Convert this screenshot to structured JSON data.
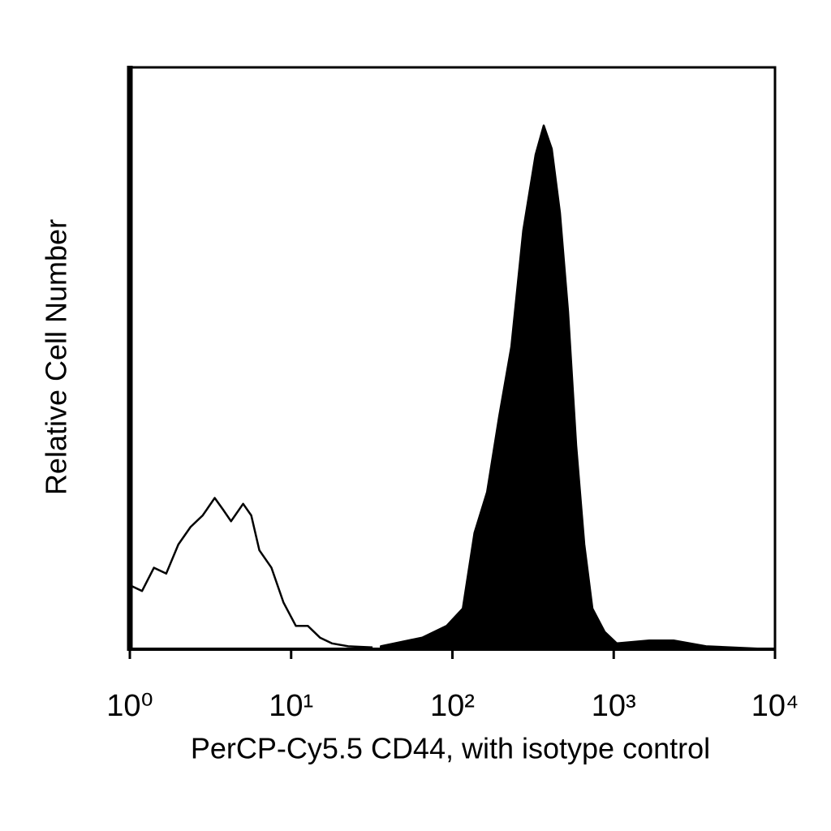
{
  "chart_data": {
    "type": "line",
    "x_label": "PerCP-Cy5.5 CD44, with isotype control",
    "y_label": "Relative Cell Number",
    "xscale": "log",
    "xlim": [
      1,
      10000
    ],
    "xticks": [
      {
        "value": 1,
        "label": "10⁰"
      },
      {
        "value": 10,
        "label": "10¹"
      },
      {
        "value": 100,
        "label": "10²"
      },
      {
        "value": 1000,
        "label": "10³"
      },
      {
        "value": 10000,
        "label": "10⁴"
      }
    ],
    "ylim": [
      0,
      100
    ],
    "grid": false,
    "series": [
      {
        "color": "#000000",
        "filled": false,
        "x": [
          1,
          1.19,
          1.41,
          1.68,
          2.0,
          2.38,
          2.83,
          3.36,
          3.78,
          4.24,
          5.04,
          5.66,
          6.35,
          7.55,
          8.97,
          10.7,
          12.7,
          15.1,
          17.9,
          22.6,
          32
        ],
        "values": [
          11,
          10,
          14,
          13,
          18,
          21,
          23,
          26,
          24,
          22,
          25,
          23,
          17,
          14,
          8,
          4,
          4,
          2,
          1,
          0.5,
          0.3
        ]
      },
      {
        "color": "#000000",
        "filled": true,
        "x": [
          36,
          65,
          92,
          116,
          137,
          164,
          195,
          232,
          275,
          328,
          368,
          413,
          464,
          521,
          585,
          657,
          738,
          878,
          1045,
          1660,
          2350,
          3735,
          9440
        ],
        "values": [
          0.5,
          2,
          4,
          7,
          20,
          27,
          40,
          52,
          72,
          85,
          90,
          86,
          75,
          58,
          35,
          18,
          7,
          3,
          1,
          1.5,
          1.5,
          0.5,
          0
        ]
      }
    ]
  }
}
